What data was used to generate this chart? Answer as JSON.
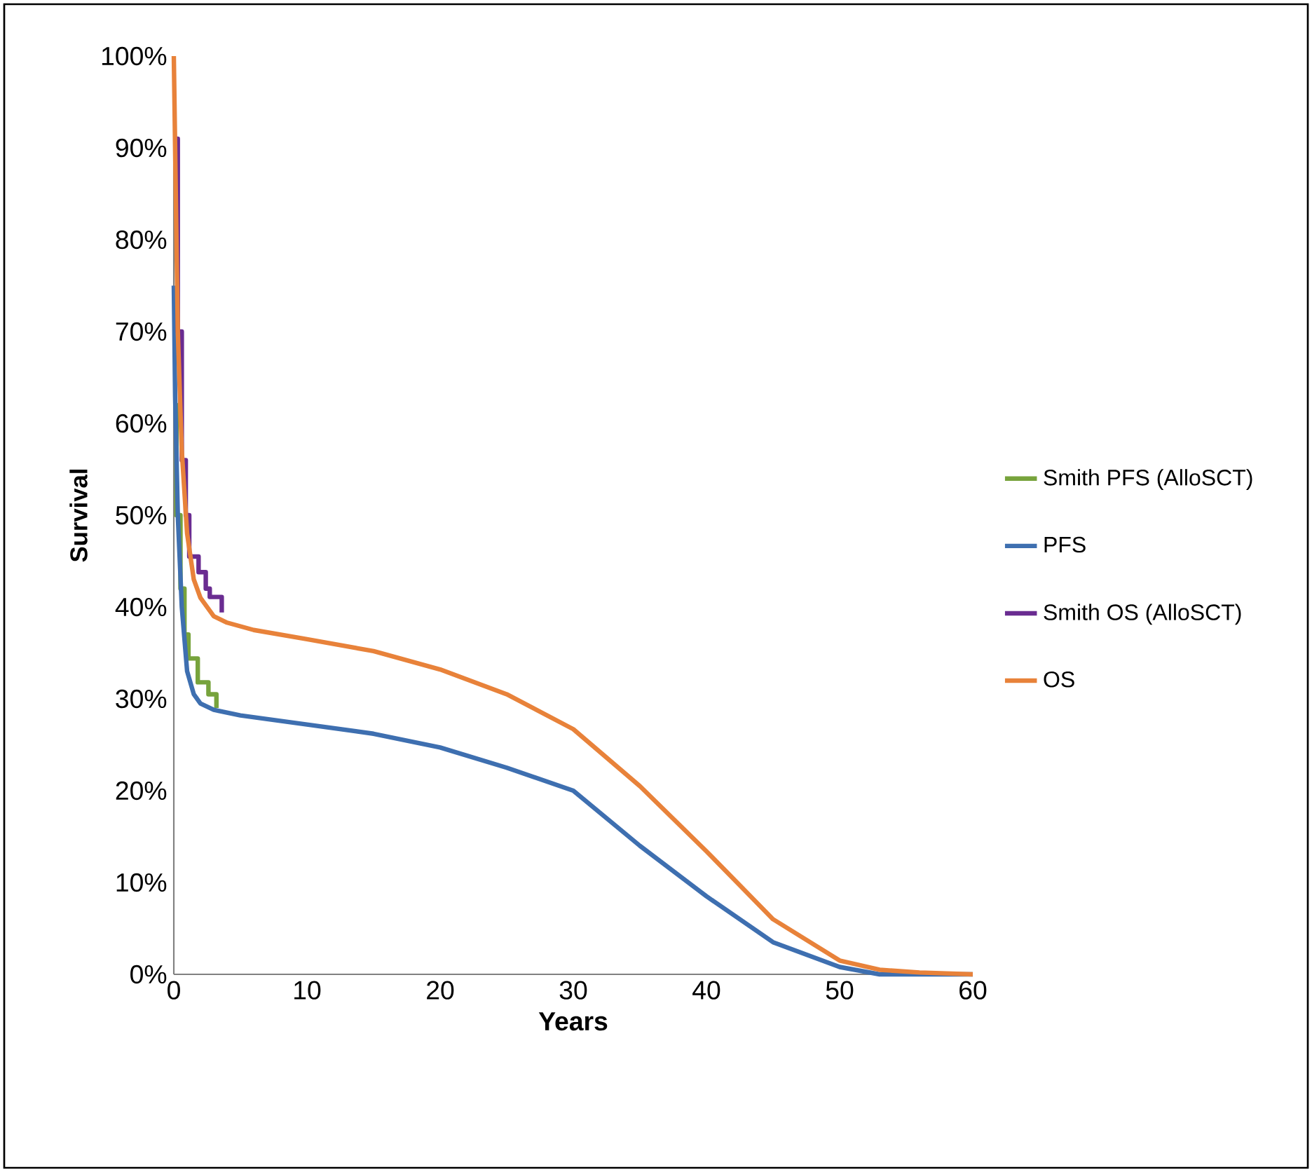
{
  "chart_data": {
    "type": "line",
    "xlabel": "Years",
    "ylabel": "Survival",
    "xlim": [
      0,
      60
    ],
    "ylim": [
      0,
      100
    ],
    "xticks": [
      0,
      10,
      20,
      30,
      40,
      50,
      60
    ],
    "yticks": [
      {
        "value": 0,
        "label": "0%"
      },
      {
        "value": 10,
        "label": "10%"
      },
      {
        "value": 20,
        "label": "20%"
      },
      {
        "value": 30,
        "label": "30%"
      },
      {
        "value": 40,
        "label": "40%"
      },
      {
        "value": 50,
        "label": "50%"
      },
      {
        "value": 60,
        "label": "60%"
      },
      {
        "value": 70,
        "label": "70%"
      },
      {
        "value": 80,
        "label": "80%"
      },
      {
        "value": 90,
        "label": "90%"
      },
      {
        "value": 100,
        "label": "100%"
      }
    ],
    "legend": "right",
    "grid": false,
    "marker": "none",
    "line_style": "solid",
    "series": [
      {
        "name": "Smith PFS (AlloSCT)",
        "color": "#77a33c",
        "type": "step",
        "x": [
          0,
          0.2,
          0.5,
          0.8,
          1.1,
          1.8,
          2.6,
          3.2
        ],
        "values": [
          62,
          50,
          42,
          37,
          34.4,
          31.8,
          30.5,
          29
        ]
      },
      {
        "name": "PFS",
        "color": "#3e6fb0",
        "x": [
          0,
          0.1,
          0.3,
          0.6,
          1,
          1.5,
          2,
          3,
          5,
          10,
          15,
          20,
          25,
          30,
          35,
          40,
          45,
          50,
          53,
          60
        ],
        "values": [
          75,
          63,
          50,
          40,
          33,
          30.5,
          29.5,
          28.8,
          28.2,
          27.2,
          26.2,
          24.7,
          22.5,
          20,
          14,
          8.5,
          3.5,
          0.8,
          0,
          0
        ]
      },
      {
        "name": "Smith OS (AlloSCT)",
        "color": "#6a2c91",
        "type": "step",
        "x": [
          0,
          0.3,
          0.6,
          0.9,
          1.16,
          1.86,
          2.4,
          2.7,
          3.6
        ],
        "values": [
          91,
          70,
          56,
          50,
          45.5,
          43.8,
          42,
          41.1,
          39.4
        ]
      },
      {
        "name": "OS",
        "color": "#e8823a",
        "x": [
          0,
          0.3,
          0.6,
          1,
          1.5,
          2,
          3,
          4,
          6,
          10,
          15,
          20,
          25,
          30,
          35,
          40,
          45,
          50,
          53,
          56,
          60
        ],
        "values": [
          100,
          70,
          57,
          48,
          43,
          41,
          39,
          38.3,
          37.5,
          36.5,
          35.2,
          33.2,
          30.5,
          26.7,
          20.5,
          13.4,
          6,
          1.5,
          0.5,
          0.2,
          0
        ]
      }
    ]
  }
}
